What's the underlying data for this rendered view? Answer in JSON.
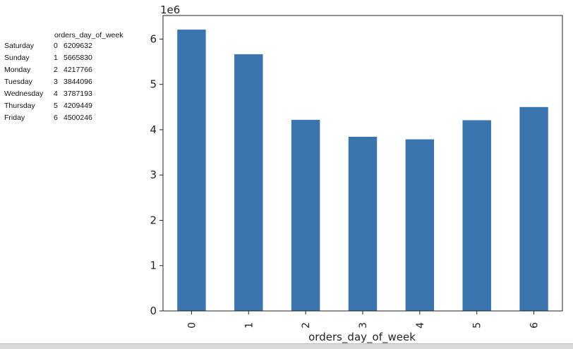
{
  "table": {
    "header": "orders_day_of_week",
    "rows": [
      {
        "day": "Saturday",
        "index": "0",
        "value": "6209632"
      },
      {
        "day": "Sunday",
        "index": "1",
        "value": "5665830"
      },
      {
        "day": "Monday",
        "index": "2",
        "value": "4217766"
      },
      {
        "day": "Tuesday",
        "index": "3",
        "value": "3844096"
      },
      {
        "day": "Wednesday",
        "index": "4",
        "value": "3787193"
      },
      {
        "day": "Thursday",
        "index": "5",
        "value": "4209449"
      },
      {
        "day": "Friday",
        "index": "6",
        "value": "4500246"
      }
    ]
  },
  "chart_data": {
    "type": "bar",
    "categories": [
      "0",
      "1",
      "2",
      "3",
      "4",
      "5",
      "6"
    ],
    "values": [
      6209632,
      5665830,
      4217766,
      3844096,
      3787193,
      4209449,
      4500246
    ],
    "xlabel": "orders_day_of_week",
    "ylabel": "",
    "y_offset_label": "1e6",
    "ylim": [
      0,
      6520000
    ],
    "y_ticks": [
      0,
      1000000,
      2000000,
      3000000,
      4000000,
      5000000,
      6000000
    ],
    "y_tick_labels": [
      "0",
      "1",
      "2",
      "3",
      "4",
      "5",
      "6"
    ],
    "x_tick_rotation": "vertical",
    "bar_color": "#3a75af",
    "grid": false,
    "legend": "none"
  }
}
